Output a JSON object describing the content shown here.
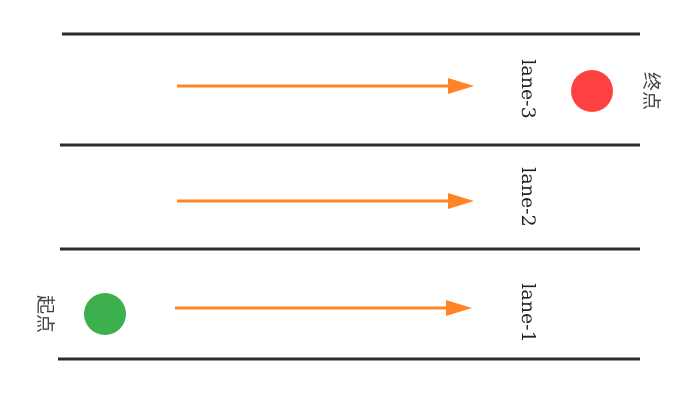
{
  "lanes": [
    {
      "label": "lane-3"
    },
    {
      "label": "lane-2"
    },
    {
      "label": "lane-1"
    }
  ],
  "start": {
    "label": "起点",
    "color": "#3cb04c"
  },
  "end": {
    "label": "终点",
    "color": "#ff4040"
  },
  "colors": {
    "line": "#2b2b2b",
    "arrow": "#ff8426"
  }
}
